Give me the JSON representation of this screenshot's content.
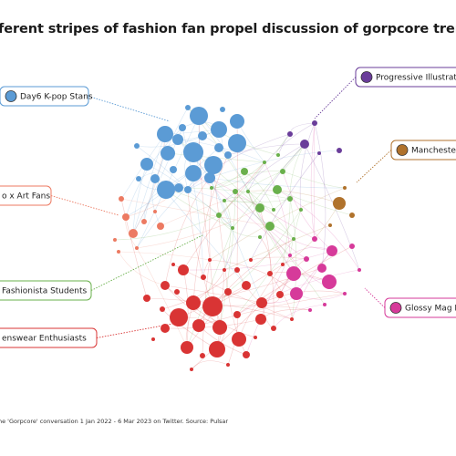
{
  "title": "ferent stripes of fashion fan propel discussion of gorpcore trend",
  "source": "he 'Gorpcore' conversation 1 Jan 2022 - 6 Mar 2023 on Twitter. Source: Pulsar",
  "chart_data": {
    "type": "network",
    "communities": [
      {
        "name": "Day6 K-pop Stans",
        "color": "#5b9bd5"
      },
      {
        "name": "Progressive Illustrat",
        "color": "#6a3d9a"
      },
      {
        "name": "Mancheste",
        "color": "#b0722c"
      },
      {
        "name": "o x Art Fans",
        "color": "#ec7a62"
      },
      {
        "name": "Fashionista Students",
        "color": "#6ab04c"
      },
      {
        "name": "Glossy Mag F",
        "color": "#d63a9a"
      },
      {
        "name": "enswear Enthusiasts",
        "color": "#d93434"
      }
    ]
  }
}
